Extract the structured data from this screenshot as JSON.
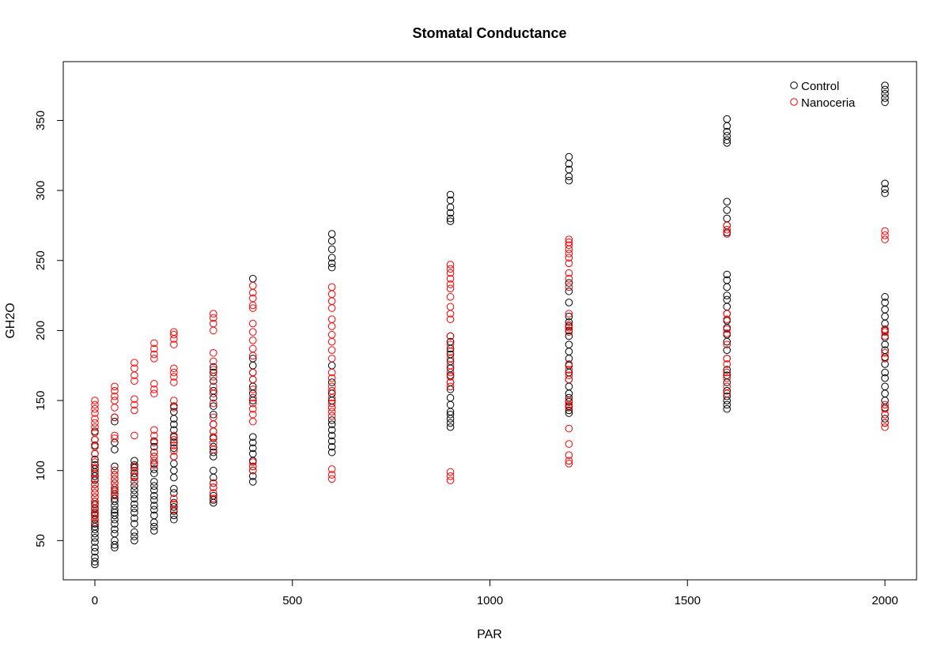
{
  "chart_data": {
    "type": "scatter",
    "title": "Stomatal Conductance",
    "xlabel": "PAR",
    "ylabel": "GH2O",
    "xlim": [
      -80,
      2080
    ],
    "ylim": [
      22,
      392
    ],
    "xticks": [
      0,
      500,
      1000,
      1500,
      2000
    ],
    "yticks": [
      50,
      100,
      150,
      200,
      250,
      300,
      350
    ],
    "grid": false,
    "legend_position": "top-right",
    "series": [
      {
        "name": "Control",
        "color": "#000000",
        "groups": [
          {
            "x": 0,
            "y": [
              33,
              35,
              38,
              42,
              45,
              49,
              52,
              55,
              58,
              60,
              62,
              65,
              68,
              70,
              73,
              76,
              78,
              81,
              84,
              87,
              90,
              93,
              96,
              99,
              101,
              104,
              108,
              112,
              118,
              122,
              128
            ]
          },
          {
            "x": 50,
            "y": [
              45,
              47,
              50,
              55,
              58,
              62,
              65,
              68,
              70,
              72,
              75,
              78,
              80,
              83,
              86,
              88,
              91,
              94,
              97,
              100,
              103,
              115,
              120,
              135,
              138
            ]
          },
          {
            "x": 100,
            "y": [
              50,
              53,
              56,
              62,
              66,
              70,
              73,
              76,
              80,
              83,
              86,
              89,
              92,
              95,
              98,
              102,
              104,
              107
            ]
          },
          {
            "x": 150,
            "y": [
              57,
              60,
              63,
              68,
              72,
              75,
              79,
              82,
              86,
              89,
              92,
              98,
              101,
              105,
              110,
              113,
              117,
              121
            ]
          },
          {
            "x": 200,
            "y": [
              65,
              68,
              71,
              74,
              77,
              84,
              87,
              95,
              100,
              105,
              110,
              116,
              120,
              124,
              129,
              133,
              137,
              142,
              146
            ]
          },
          {
            "x": 300,
            "y": [
              77,
              79,
              82,
              88,
              91,
              95,
              100,
              110,
              113,
              117,
              123,
              128,
              133,
              140,
              146,
              152,
              157,
              164,
              170,
              174
            ]
          },
          {
            "x": 400,
            "y": [
              92,
              96,
              100,
              103,
              107,
              112,
              116,
              120,
              124,
              150,
              155,
              160,
              165,
              170,
              175,
              180,
              237
            ]
          },
          {
            "x": 600,
            "y": [
              113,
              117,
              121,
              125,
              129,
              133,
              136,
              145,
              150,
              155,
              163,
              175,
              245,
              248,
              252,
              258,
              264,
              269
            ]
          },
          {
            "x": 900,
            "y": [
              131,
              134,
              137,
              140,
              142,
              147,
              152,
              158,
              163,
              168,
              173,
              178,
              183,
              187,
              192,
              196,
              278,
              280,
              284,
              288,
              293,
              297
            ]
          },
          {
            "x": 1200,
            "y": [
              141,
              143,
              146,
              149,
              152,
              155,
              160,
              165,
              170,
              175,
              180,
              185,
              190,
              196,
              200,
              203,
              206,
              210,
              220,
              228,
              234,
              307,
              310,
              315,
              319,
              324
            ]
          },
          {
            "x": 1600,
            "y": [
              144,
              147,
              150,
              153,
              157,
              163,
              168,
              172,
              180,
              186,
              192,
              197,
              202,
              207,
              212,
              217,
              222,
              225,
              231,
              236,
              240,
              270,
              275,
              280,
              286,
              292,
              334,
              336,
              339,
              342,
              346,
              351
            ]
          },
          {
            "x": 2000,
            "y": [
              134,
              137,
              140,
              145,
              150,
              155,
              160,
              166,
              170,
              176,
              181,
              186,
              190,
              195,
              200,
              205,
              210,
              215,
              220,
              224,
              298,
              301,
              305,
              363,
              366,
              369,
              372,
              375
            ]
          }
        ]
      },
      {
        "name": "Nanoceria",
        "color": "#ff0000",
        "groups": [
          {
            "x": 0,
            "y": [
              63,
              66,
              69,
              72,
              75,
              78,
              81,
              84,
              87,
              90,
              94,
              98,
              102,
              106,
              112,
              117,
              122,
              127,
              131,
              134,
              137,
              141,
              144,
              147,
              150
            ]
          },
          {
            "x": 50,
            "y": [
              82,
              85,
              88,
              91,
              94,
              97,
              100,
              123,
              125,
              138,
              145,
              150,
              153,
              157,
              160
            ]
          },
          {
            "x": 100,
            "y": [
              92,
              96,
              100,
              103,
              125,
              143,
              147,
              151,
              164,
              168,
              173,
              177
            ]
          },
          {
            "x": 150,
            "y": [
              104,
              107,
              110,
              113,
              120,
              125,
              129,
              155,
              158,
              162,
              180,
              183,
              187,
              191
            ]
          },
          {
            "x": 200,
            "y": [
              72,
              76,
              80,
              110,
              114,
              118,
              122,
              125,
              145,
              150,
              163,
              167,
              170,
              173,
              190,
              194,
              197,
              199
            ]
          },
          {
            "x": 300,
            "y": [
              80,
              84,
              88,
              91,
              115,
              120,
              124,
              128,
              133,
              138,
              148,
              155,
              160,
              167,
              172,
              178,
              184,
              200,
              205,
              209,
              212
            ]
          },
          {
            "x": 400,
            "y": [
              100,
              103,
              106,
              135,
              140,
              144,
              148,
              152,
              158,
              165,
              170,
              182,
              187,
              193,
              199,
              205,
              216,
              218,
              223,
              227,
              232
            ]
          },
          {
            "x": 600,
            "y": [
              94,
              97,
              101,
              139,
              142,
              145,
              148,
              152,
              157,
              160,
              166,
              170,
              180,
              186,
              192,
              197,
              203,
              208,
              216,
              221,
              226,
              231
            ]
          },
          {
            "x": 900,
            "y": [
              93,
              96,
              99,
              160,
              163,
              167,
              170,
              175,
              180,
              185,
              190,
              196,
              208,
              212,
              217,
              224,
              230,
              233,
              237,
              241,
              244,
              247
            ]
          },
          {
            "x": 1200,
            "y": [
              105,
              107,
              111,
              119,
              130,
              145,
              147,
              150,
              165,
              168,
              172,
              176,
              199,
              202,
              204,
              212,
              231,
              237,
              241,
              248,
              252,
              255,
              258,
              261,
              263,
              265
            ]
          },
          {
            "x": 1600,
            "y": [
              155,
              160,
              166,
              170,
              176,
              180,
              190,
              198,
              201,
              208,
              212,
              269,
              272,
              275
            ]
          },
          {
            "x": 2000,
            "y": [
              131,
              134,
              140,
              144,
              147,
              180,
              184,
              196,
              199,
              201,
              265,
              268,
              271
            ]
          }
        ]
      }
    ]
  }
}
